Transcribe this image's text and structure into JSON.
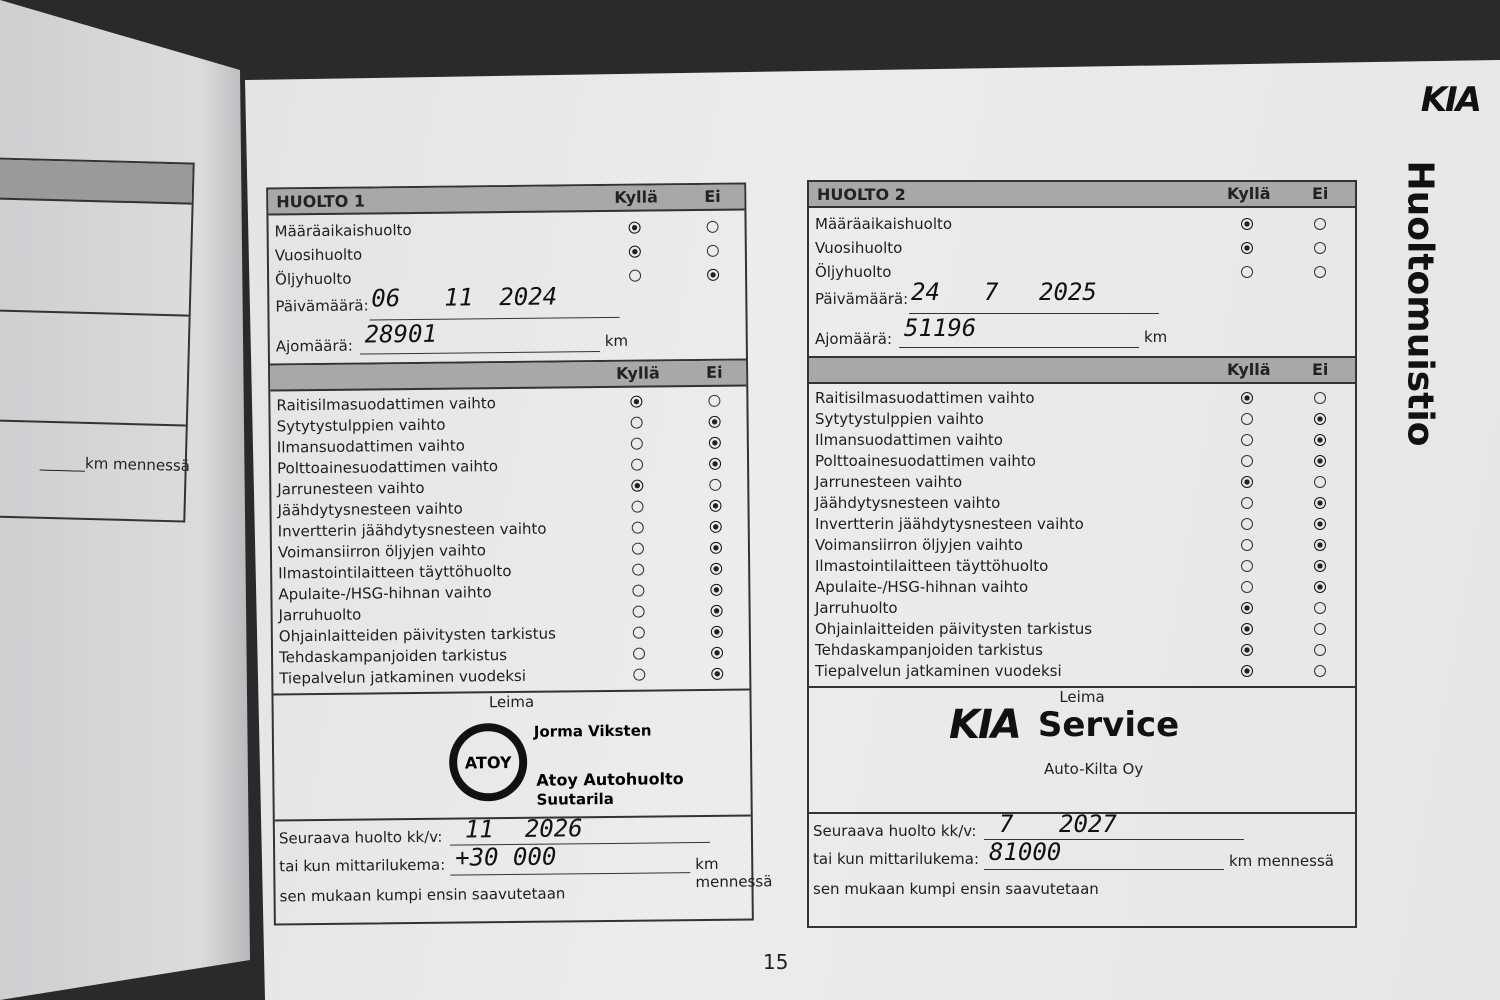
{
  "left_page": {
    "km_text": "km mennessä"
  },
  "page_number": "15",
  "side_title": "Huoltomuistio",
  "brand_logo": "KIA",
  "columns": {
    "yes": "Kyllä",
    "no": "Ei"
  },
  "huolto1": {
    "title": "HUOLTO 1",
    "service_types": [
      {
        "label": "Määräaikaishuolto",
        "value": "yes"
      },
      {
        "label": "Vuosihuolto",
        "value": "yes"
      },
      {
        "label": "Öljyhuolto",
        "value": "no"
      }
    ],
    "date_label": "Päivämäärä:",
    "date": {
      "day": "06",
      "month": "11",
      "year": "2024"
    },
    "mileage_label": "Ajomäärä:",
    "mileage": "28901",
    "km": "km",
    "items": [
      {
        "label": "Raitisilmasuodattimen vaihto",
        "value": "yes"
      },
      {
        "label": "Sytytystulppien vaihto",
        "value": "no"
      },
      {
        "label": "Ilmansuodattimen vaihto",
        "value": "no"
      },
      {
        "label": "Polttoainesuodattimen vaihto",
        "value": "no"
      },
      {
        "label": "Jarrunesteen vaihto",
        "value": "yes"
      },
      {
        "label": "Jäähdytysnesteen vaihto",
        "value": "no"
      },
      {
        "label": "Invertterin jäähdytysnesteen vaihto",
        "value": "no"
      },
      {
        "label": "Voimansiirron öljyjen vaihto",
        "value": "no"
      },
      {
        "label": "Ilmastointilaitteen täyttöhuolto",
        "value": "no"
      },
      {
        "label": "Apulaite-/HSG-hihnan vaihto",
        "value": "no"
      },
      {
        "label": "Jarruhuolto",
        "value": "no"
      },
      {
        "label": "Ohjainlaitteiden päivitysten tarkistus",
        "value": "no"
      },
      {
        "label": "Tehdaskampanjoiden tarkistus",
        "value": "no"
      },
      {
        "label": "Tiepalvelun jatkaminen vuodeksi",
        "value": "no"
      }
    ],
    "stamp_label": "Leima",
    "stamp": {
      "logo": "ATOY",
      "name": "Jorma Viksten",
      "company": "Atoy Autohuolto",
      "location": "Suutarila"
    },
    "next_label": "Seuraava huolto kk/v:",
    "next": {
      "month": "11",
      "year": "2026"
    },
    "odometer_label": "tai kun mittarilukema:",
    "odometer": "+30 000",
    "km_by": "km mennessä",
    "note": "sen mukaan kumpi ensin saavutetaan"
  },
  "huolto2": {
    "title": "HUOLTO 2",
    "service_types": [
      {
        "label": "Määräaikaishuolto",
        "value": "yes"
      },
      {
        "label": "Vuosihuolto",
        "value": "yes"
      },
      {
        "label": "Öljyhuolto",
        "value": "none"
      }
    ],
    "date_label": "Päivämäärä:",
    "date": {
      "day": "24",
      "month": "7",
      "year": "2025"
    },
    "mileage_label": "Ajomäärä:",
    "mileage": "51196",
    "km": "km",
    "items": [
      {
        "label": "Raitisilmasuodattimen vaihto",
        "value": "yes"
      },
      {
        "label": "Sytytystulppien vaihto",
        "value": "no"
      },
      {
        "label": "Ilmansuodattimen vaihto",
        "value": "no"
      },
      {
        "label": "Polttoainesuodattimen vaihto",
        "value": "no"
      },
      {
        "label": "Jarrunesteen vaihto",
        "value": "yes"
      },
      {
        "label": "Jäähdytysnesteen vaihto",
        "value": "no"
      },
      {
        "label": "Invertterin jäähdytysnesteen vaihto",
        "value": "no"
      },
      {
        "label": "Voimansiirron öljyjen vaihto",
        "value": "no"
      },
      {
        "label": "Ilmastointilaitteen täyttöhuolto",
        "value": "no"
      },
      {
        "label": "Apulaite-/HSG-hihnan vaihto",
        "value": "no"
      },
      {
        "label": "Jarruhuolto",
        "value": "yes"
      },
      {
        "label": "Ohjainlaitteiden päivitysten tarkistus",
        "value": "yes"
      },
      {
        "label": "Tehdaskampanjoiden tarkistus",
        "value": "yes"
      },
      {
        "label": "Tiepalvelun jatkaminen vuodeksi",
        "value": "yes"
      }
    ],
    "stamp_label": "Leima",
    "stamp": {
      "logo": "KIA",
      "service": "Service",
      "company": "Auto-Kilta Oy"
    },
    "next_label": "Seuraava huolto kk/v:",
    "next": {
      "month": "7",
      "year": "2027"
    },
    "odometer_label": "tai kun mittarilukema:",
    "odometer": "81000",
    "km_by": "km mennessä",
    "note": "sen mukaan kumpi ensin saavutetaan"
  }
}
